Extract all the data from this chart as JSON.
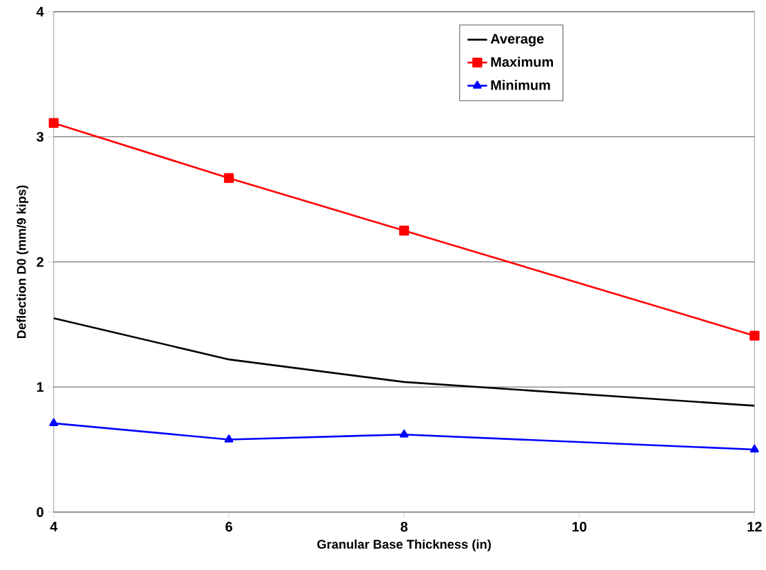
{
  "chart_data": {
    "type": "line",
    "xlabel": "Granular Base Thickness (in)",
    "ylabel": "Deflection D0 (mm/9 kips)",
    "x": [
      4,
      6,
      8,
      12
    ],
    "series": [
      {
        "name": "Average",
        "color": "#000000",
        "marker": "none",
        "values": [
          1.55,
          1.22,
          1.04,
          0.85
        ]
      },
      {
        "name": "Maximum",
        "color": "#ff0000",
        "marker": "square",
        "values": [
          3.11,
          2.67,
          2.25,
          1.41
        ]
      },
      {
        "name": "Minimum",
        "color": "#0000ff",
        "marker": "triangle",
        "values": [
          0.71,
          0.58,
          0.62,
          0.5
        ]
      }
    ],
    "xlim": [
      4,
      12
    ],
    "xticks": [
      4,
      6,
      8,
      10,
      12
    ],
    "ylim": [
      0,
      4
    ],
    "yticks": [
      0,
      1,
      2,
      3,
      4
    ],
    "grid": "y",
    "legend": "top right",
    "line_style": "solid"
  }
}
